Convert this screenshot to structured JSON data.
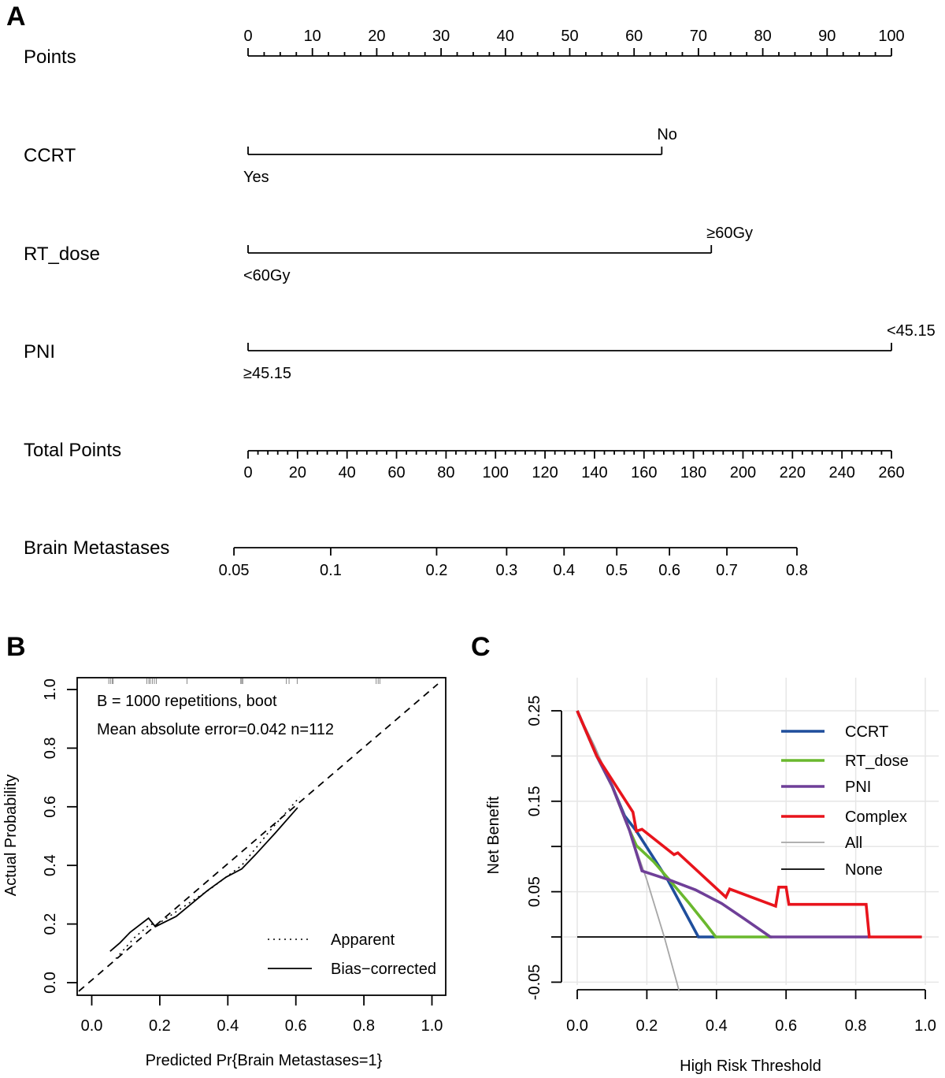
{
  "panels": {
    "a": "A",
    "b": "B",
    "c": "C"
  },
  "chart_data": [
    {
      "type": "nomogram",
      "points_axis": {
        "label": "Points",
        "range": [
          0,
          100
        ],
        "major_step": 10,
        "minor_step": 2.5,
        "ticks": [
          "0",
          "10",
          "20",
          "30",
          "40",
          "50",
          "60",
          "70",
          "80",
          "90",
          "100"
        ]
      },
      "variables": [
        {
          "label": "CCRT",
          "levels": [
            {
              "label": "Yes",
              "points": 0
            },
            {
              "label": "No",
              "points": 64.3
            }
          ]
        },
        {
          "label": "RT_dose",
          "levels": [
            {
              "label": "<60Gy",
              "points": 0
            },
            {
              "label": "≥60Gy",
              "points": 72
            }
          ]
        },
        {
          "label": "PNI",
          "levels": [
            {
              "label": "≥45.15",
              "points": 0
            },
            {
              "label": "<45.15",
              "points": 100
            }
          ]
        }
      ],
      "total_points_axis": {
        "label": "Total Points",
        "range": [
          0,
          260
        ],
        "major_step": 20,
        "minor_step": 4,
        "ticks": [
          "0",
          "20",
          "40",
          "60",
          "80",
          "100",
          "120",
          "140",
          "160",
          "180",
          "200",
          "220",
          "240",
          "260"
        ]
      },
      "outcome_axis": {
        "label": "Brain Metastases",
        "ticks": [
          {
            "label": "0.05",
            "total_points": -5.7
          },
          {
            "label": "0.1",
            "total_points": 33.4
          },
          {
            "label": "0.2",
            "total_points": 76.2
          },
          {
            "label": "0.3",
            "total_points": 104.5
          },
          {
            "label": "0.4",
            "total_points": 127.7
          },
          {
            "label": "0.5",
            "total_points": 149
          },
          {
            "label": "0.6",
            "total_points": 170.3
          },
          {
            "label": "0.7",
            "total_points": 193.5
          },
          {
            "label": "0.8",
            "total_points": 221.8
          }
        ]
      }
    },
    {
      "type": "line",
      "xlabel": "Predicted Pr{Brain Metastases=1}",
      "ylabel": "Actual Probability",
      "xlim": [
        -0.04,
        1.04
      ],
      "ylim": [
        -0.04,
        1.04
      ],
      "xticks": [
        "0.0",
        "0.2",
        "0.4",
        "0.6",
        "0.8",
        "1.0"
      ],
      "yticks": [
        "0.0",
        "0.2",
        "0.4",
        "0.6",
        "0.8",
        "1.0"
      ],
      "annotations": [
        "B = 1000 repetitions, boot",
        "Mean absolute error=0.042 n=112"
      ],
      "legend_position": "bottom-right",
      "ideal_line": "dashed diagonal",
      "rug": [
        0.05,
        0.055,
        0.06,
        0.063,
        0.162,
        0.168,
        0.172,
        0.178,
        0.184,
        0.19,
        0.28,
        0.438,
        0.441,
        0.444,
        0.572,
        0.58,
        0.604,
        0.836,
        0.842,
        0.847
      ],
      "series": [
        {
          "name": "Apparent",
          "style": "dotted",
          "x": [
            0.071,
            0.125,
            0.171,
            0.194,
            0.349,
            0.441,
            0.525,
            0.611
          ],
          "y": [
            0.082,
            0.153,
            0.199,
            0.2,
            0.32,
            0.4,
            0.52,
            0.633
          ]
        },
        {
          "name": "Bias-corrected",
          "style": "solid",
          "x": [
            0.054,
            0.083,
            0.113,
            0.167,
            0.187,
            0.248,
            0.34,
            0.395,
            0.441,
            0.48,
            0.54,
            0.605
          ],
          "y": [
            0.107,
            0.136,
            0.172,
            0.22,
            0.191,
            0.226,
            0.314,
            0.36,
            0.388,
            0.435,
            0.511,
            0.597
          ]
        }
      ],
      "legend_labels": [
        "Apparent",
        "Bias−corrected"
      ]
    },
    {
      "type": "line",
      "xlabel": "High Risk Threshold",
      "ylabel": "Net Benefit",
      "xlim": [
        0,
        1
      ],
      "ylim": [
        -0.05,
        0.25
      ],
      "xticks": [
        "0.0",
        "0.2",
        "0.4",
        "0.6",
        "0.8",
        "1.0"
      ],
      "yticks": [
        "-0.05",
        "0.05",
        "0.15",
        "0.25"
      ],
      "grid": true,
      "legend_position": "top-right",
      "series": [
        {
          "name": "None",
          "color": "#000000",
          "x": [
            0,
            0.99
          ],
          "y": [
            0,
            0
          ]
        },
        {
          "name": "All",
          "color": "#a6a6a6",
          "x": [
            0,
            0.05,
            0.1,
            0.15,
            0.2,
            0.25,
            0.293
          ],
          "y": [
            0.25,
            0.211,
            0.167,
            0.118,
            0.063,
            0,
            -0.06
          ]
        },
        {
          "name": "CCRT",
          "color": "#1f4e9c",
          "x": [
            0,
            0.056,
            0.1,
            0.136,
            0.17,
            0.26,
            0.348,
            0.4
          ],
          "y": [
            0.25,
            0.2,
            0.167,
            0.134,
            0.117,
            0.063,
            0,
            0
          ]
        },
        {
          "name": "RT_dose",
          "color": "#6ab82e",
          "x": [
            0,
            0.056,
            0.1,
            0.15,
            0.17,
            0.22,
            0.265,
            0.32,
            0.37,
            0.398,
            0.56
          ],
          "y": [
            0.25,
            0.2,
            0.167,
            0.118,
            0.101,
            0.083,
            0.063,
            0.038,
            0.014,
            0,
            0
          ]
        },
        {
          "name": "PNI",
          "color": "#6f3f98",
          "x": [
            0,
            0.056,
            0.1,
            0.15,
            0.186,
            0.265,
            0.34,
            0.415,
            0.48,
            0.555,
            0.84
          ],
          "y": [
            0.25,
            0.2,
            0.167,
            0.118,
            0.073,
            0.063,
            0.052,
            0.037,
            0.02,
            0,
            0
          ]
        },
        {
          "name": "Complex",
          "color": "#e8141c",
          "x": [
            0,
            0.056,
            0.16,
            0.17,
            0.186,
            0.278,
            0.289,
            0.427,
            0.438,
            0.57,
            0.579,
            0.6,
            0.608,
            0.83,
            0.839,
            0.99
          ],
          "y": [
            0.25,
            0.2,
            0.138,
            0.117,
            0.119,
            0.091,
            0.093,
            0.044,
            0.053,
            0.034,
            0.055,
            0.055,
            0.036,
            0.036,
            0,
            0
          ]
        }
      ],
      "legend_order": [
        "CCRT",
        "RT_dose",
        "PNI",
        "Complex",
        "All",
        "None"
      ]
    }
  ]
}
